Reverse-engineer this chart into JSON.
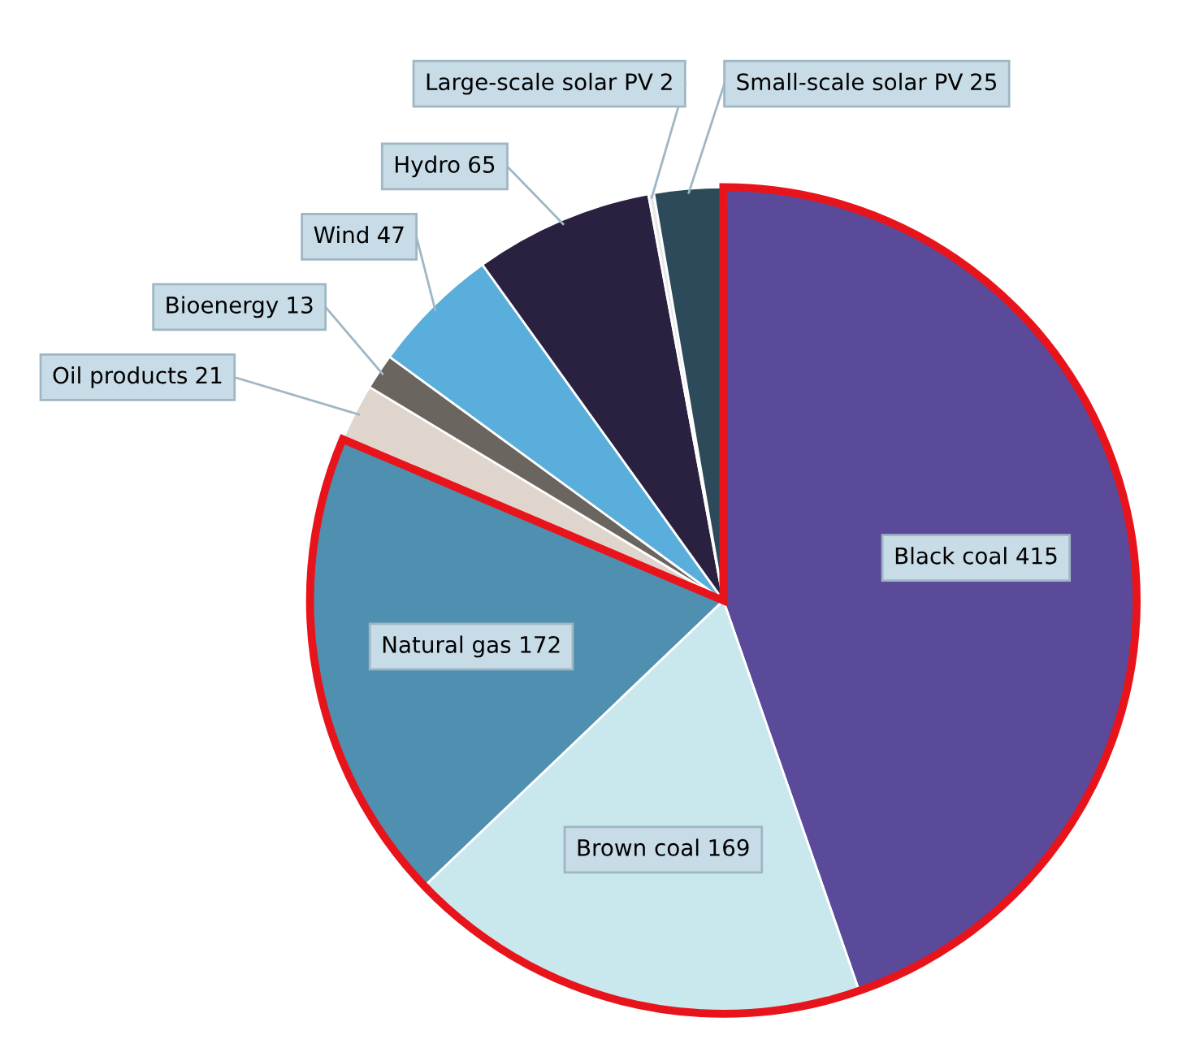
{
  "chart_data": {
    "type": "pie",
    "categories": [
      "Black coal",
      "Brown coal",
      "Natural gas",
      "Oil products",
      "Bioenergy",
      "Wind",
      "Hydro",
      "Large-scale solar PV",
      "Small-scale solar PV"
    ],
    "values": [
      415,
      169,
      172,
      21,
      13,
      47,
      65,
      2,
      25
    ],
    "colors": [
      "#5b4a9a",
      "#c9e8ee",
      "#4f8fb0",
      "#e0d5cc",
      "#6b6560",
      "#5aaedc",
      "#2a2040",
      "#e8e8e8",
      "#2d4a5a"
    ],
    "data_labels": true
  }
}
